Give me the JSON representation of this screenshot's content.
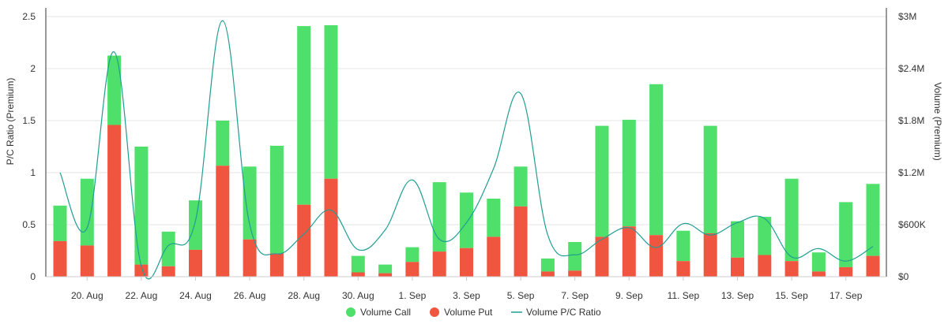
{
  "chart_data": {
    "type": "bar",
    "stacked": true,
    "title": "",
    "y_left": {
      "label": "P/C Ratio (Premium)",
      "range": [
        0,
        2.5
      ],
      "ticks": [
        "0",
        "0.5",
        "1",
        "1.5",
        "2",
        "2.5"
      ]
    },
    "y_right": {
      "label": "Volume (Premium)",
      "range": [
        0,
        3000000
      ],
      "ticks": [
        "$0",
        "$600K",
        "$1.2M",
        "$1.8M",
        "$2.4M",
        "$3M"
      ]
    },
    "x_tick_labels": [
      "20. Aug",
      "22. Aug",
      "24. Aug",
      "26. Aug",
      "28. Aug",
      "30. Aug",
      "1. Sep",
      "3. Sep",
      "5. Sep",
      "7. Sep",
      "9. Sep",
      "11. Sep",
      "13. Sep",
      "15. Sep",
      "17. Sep"
    ],
    "categories": [
      "19. Aug",
      "20. Aug",
      "21. Aug",
      "22. Aug",
      "23. Aug",
      "24. Aug",
      "25. Aug",
      "26. Aug",
      "27. Aug",
      "28. Aug",
      "29. Aug",
      "30. Aug",
      "31. Aug",
      "1. Sep",
      "2. Sep",
      "3. Sep",
      "4. Sep",
      "5. Sep",
      "6. Sep",
      "7. Sep",
      "8. Sep",
      "9. Sep",
      "10. Sep",
      "11. Sep",
      "12. Sep",
      "13. Sep",
      "14. Sep",
      "15. Sep",
      "16. Sep",
      "17. Sep",
      "18. Sep"
    ],
    "series": [
      {
        "name": "Volume Put",
        "axis": "right",
        "color": "#f0553f",
        "values": [
          410000,
          360000,
          1750000,
          140000,
          120000,
          310000,
          1280000,
          430000,
          270000,
          830000,
          1130000,
          50000,
          40000,
          170000,
          290000,
          330000,
          460000,
          810000,
          60000,
          70000,
          460000,
          580000,
          480000,
          180000,
          500000,
          220000,
          250000,
          180000,
          60000,
          110000,
          240000
        ]
      },
      {
        "name": "Volume Call",
        "axis": "right",
        "color": "#4ee06a",
        "values": [
          410000,
          770000,
          800000,
          1360000,
          400000,
          570000,
          520000,
          840000,
          1240000,
          2060000,
          1770000,
          190000,
          100000,
          170000,
          800000,
          640000,
          440000,
          460000,
          150000,
          330000,
          1280000,
          1230000,
          1740000,
          350000,
          1240000,
          420000,
          440000,
          950000,
          220000,
          750000,
          830000
        ]
      },
      {
        "name": "Volume P/C Ratio",
        "axis": "left",
        "type": "line",
        "color": "#1f9e94",
        "values": [
          1.0,
          0.47,
          2.16,
          0.1,
          0.3,
          0.54,
          2.46,
          0.5,
          0.22,
          0.41,
          0.64,
          0.26,
          0.45,
          0.93,
          0.36,
          0.52,
          1.04,
          1.76,
          0.4,
          0.21,
          0.36,
          0.47,
          0.28,
          0.51,
          0.4,
          0.52,
          0.56,
          0.19,
          0.27,
          0.15,
          0.29
        ]
      }
    ],
    "legend": {
      "position": "bottom-center",
      "items": [
        "Volume Call",
        "Volume Put",
        "Volume P/C Ratio"
      ]
    },
    "grid": true
  }
}
